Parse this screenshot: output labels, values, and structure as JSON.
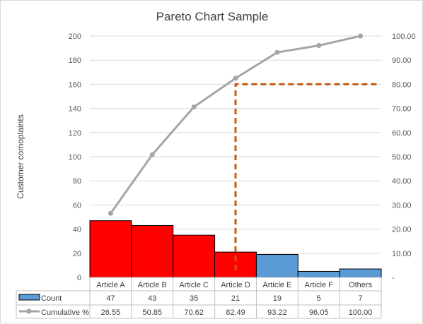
{
  "chart_data": {
    "type": "bar",
    "title": "Pareto Chart Sample",
    "ylabel": "Customer comoplaints",
    "ylim": [
      0,
      200
    ],
    "y_ticks": [
      "0",
      "20",
      "40",
      "60",
      "80",
      "100",
      "120",
      "140",
      "160",
      "180",
      "200"
    ],
    "y2lim": [
      0,
      100
    ],
    "y2_ticks": [
      "-",
      "10.00",
      "20.00",
      "30.00",
      "40.00",
      "50.00",
      "60.00",
      "70.00",
      "80.00",
      "90.00",
      "100.00"
    ],
    "categories": [
      "Article A",
      "Article B",
      "Article C",
      "Article D",
      "Article E",
      "Article F",
      "Others"
    ],
    "series": [
      {
        "name": "Count",
        "type": "bar",
        "axis": "left",
        "values": [
          47,
          43,
          35,
          21,
          19,
          5,
          7
        ],
        "labels": [
          "47",
          "43",
          "35",
          "21",
          "19",
          "5",
          "7"
        ]
      },
      {
        "name": "Cumulative %",
        "type": "line",
        "axis": "right",
        "values": [
          26.55,
          50.85,
          70.62,
          82.49,
          93.22,
          96.05,
          100.0
        ],
        "labels": [
          "26.55",
          "50.85",
          "70.62",
          "82.49",
          "93.22",
          "96.05",
          "100.00"
        ]
      }
    ],
    "bar_colors": [
      "#ff0000",
      "#ff0000",
      "#ff0000",
      "#ff0000",
      "#5b9bd5",
      "#5b9bd5",
      "#5b9bd5"
    ],
    "legend_color_bar": "#5b9bd5",
    "line_color": "#a5a5a5",
    "threshold": {
      "y2": 80,
      "from_category": "Article D",
      "color": "#c55a11"
    },
    "grid": true,
    "legend": "data-table"
  }
}
